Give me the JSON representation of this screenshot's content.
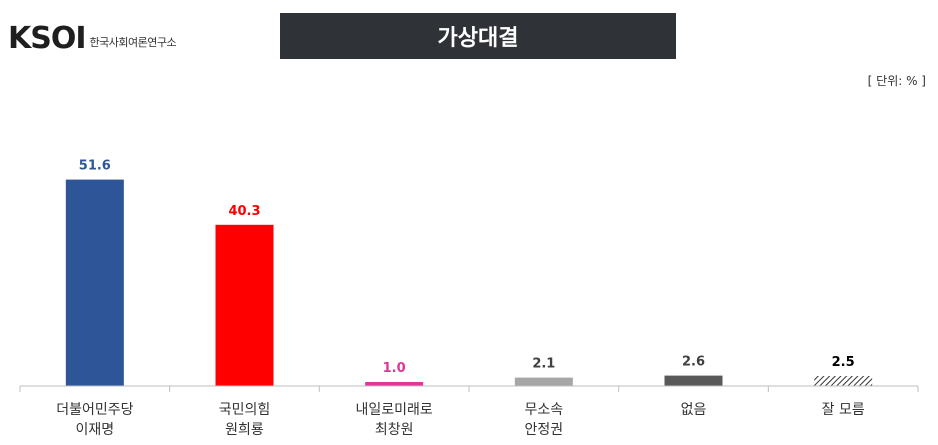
{
  "header": {
    "logo_mark": "KSOI",
    "logo_name": "한국사회여론연구소",
    "title": "가상대결",
    "unit": "[ 단위: % ]"
  },
  "chart_data": {
    "type": "bar",
    "categories": [
      [
        "더불어민주당",
        "이재명"
      ],
      [
        "국민의힘",
        "원희룡"
      ],
      [
        "내일로미래로",
        "최창원"
      ],
      [
        "무소속",
        "안정권"
      ],
      [
        "없음"
      ],
      [
        "잘 모름"
      ]
    ],
    "values": [
      51.6,
      40.3,
      1.0,
      2.1,
      2.6,
      2.5
    ],
    "value_labels": [
      "51.6",
      "40.3",
      "1.0",
      "2.1",
      "2.6",
      "2.5"
    ],
    "colors": [
      "#2e5597",
      "#ff0000",
      "#e0359b",
      "#a6a6a6",
      "#595959",
      "hatch"
    ],
    "label_colors": [
      "#2e5597",
      "#ff0000",
      "#e0359b",
      "#404040",
      "#404040",
      "#000000"
    ],
    "ylim": [
      0,
      60
    ],
    "grid": false,
    "legend": "none",
    "title": "가상대결",
    "xlabel": "",
    "ylabel": ""
  }
}
